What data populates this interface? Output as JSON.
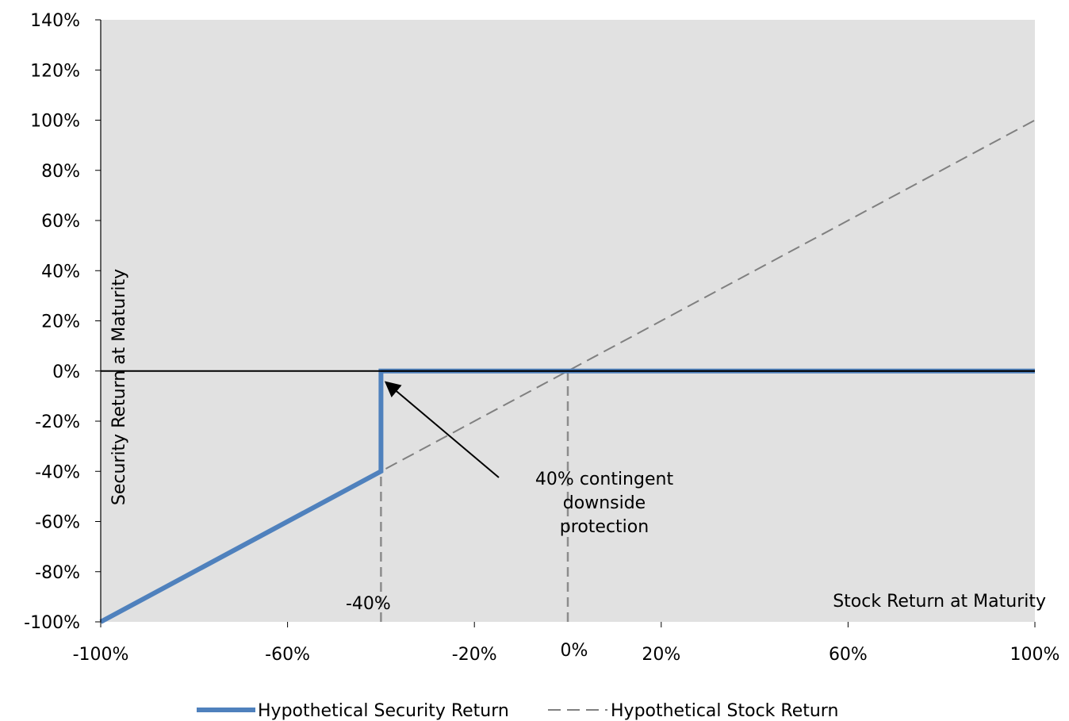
{
  "chart_data": {
    "type": "line",
    "title": "",
    "xlabel": "Stock Return at Maturity",
    "ylabel": "Security Return at Maturity",
    "xlim": [
      -100,
      100
    ],
    "ylim": [
      -100,
      140
    ],
    "x_ticks": [
      -100,
      -60,
      -20,
      20,
      60,
      100
    ],
    "x_tick_labels": [
      "-100%",
      "-60%",
      "-20%",
      "20%",
      "60%",
      "100%"
    ],
    "y_ticks": [
      140,
      120,
      100,
      80,
      60,
      40,
      20,
      0,
      -20,
      -40,
      -60,
      -80,
      -100
    ],
    "y_tick_labels": [
      "140%",
      "120%",
      "100%",
      "80%",
      "60%",
      "40%",
      "20%",
      "0%",
      "-20%",
      "-40%",
      "-60%",
      "-80%",
      "-100%"
    ],
    "extra_x_labels": [
      {
        "x": -40,
        "label": "-40%"
      },
      {
        "x": 0,
        "label": "0%"
      }
    ],
    "series": [
      {
        "name": "Hypothetical Security Return",
        "color": "#4f81bd",
        "style": "solid",
        "points": [
          [
            -100,
            -100
          ],
          [
            -40,
            -40
          ],
          [
            -40,
            0
          ],
          [
            100,
            0
          ]
        ]
      },
      {
        "name": "Hypothetical Stock Return",
        "color": "#808080",
        "style": "dashed",
        "points": [
          [
            -100,
            -100
          ],
          [
            100,
            100
          ]
        ]
      }
    ],
    "reference_lines": [
      {
        "axis": "x",
        "value": -40,
        "from_y": -100,
        "to_y": -40
      },
      {
        "axis": "x",
        "value": 0,
        "from_y": -100,
        "to_y": 0
      }
    ],
    "annotation": {
      "lines": [
        "40% contingent",
        "downside",
        "protection"
      ],
      "arrow_to": [
        -40,
        0
      ]
    },
    "grid": false,
    "plot_background": "#e1e1e1",
    "legend_position": "bottom"
  }
}
